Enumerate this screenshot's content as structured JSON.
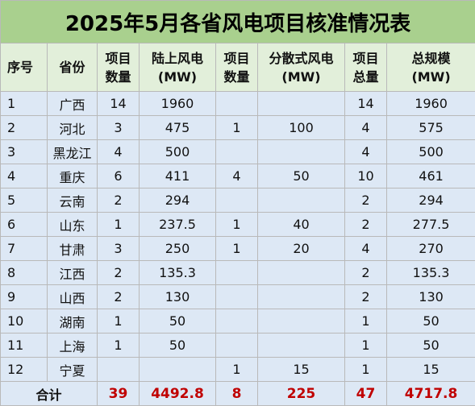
{
  "title": "2025年5月各省风电项目核准情况表",
  "headers": {
    "seq": "序号",
    "province": "省份",
    "onshore_count": [
      "项目",
      "数量"
    ],
    "onshore_capacity": [
      "陆上风电",
      "(MW)"
    ],
    "distributed_count": [
      "项目",
      "数量"
    ],
    "distributed_capacity": [
      "分散式风电",
      "(MW)"
    ],
    "total_count": [
      "项目",
      "总量"
    ],
    "total_capacity": [
      "总规模",
      "(MW)"
    ]
  },
  "rows": [
    {
      "seq": "1",
      "province": "广西",
      "on_n": "14",
      "on_mw": "1960",
      "dist_n": "",
      "dist_mw": "",
      "tot_n": "14",
      "tot_mw": "1960"
    },
    {
      "seq": "2",
      "province": "河北",
      "on_n": "3",
      "on_mw": "475",
      "dist_n": "1",
      "dist_mw": "100",
      "tot_n": "4",
      "tot_mw": "575"
    },
    {
      "seq": "3",
      "province": "黑龙江",
      "on_n": "4",
      "on_mw": "500",
      "dist_n": "",
      "dist_mw": "",
      "tot_n": "4",
      "tot_mw": "500"
    },
    {
      "seq": "4",
      "province": "重庆",
      "on_n": "6",
      "on_mw": "411",
      "dist_n": "4",
      "dist_mw": "50",
      "tot_n": "10",
      "tot_mw": "461"
    },
    {
      "seq": "5",
      "province": "云南",
      "on_n": "2",
      "on_mw": "294",
      "dist_n": "",
      "dist_mw": "",
      "tot_n": "2",
      "tot_mw": "294"
    },
    {
      "seq": "6",
      "province": "山东",
      "on_n": "1",
      "on_mw": "237.5",
      "dist_n": "1",
      "dist_mw": "40",
      "tot_n": "2",
      "tot_mw": "277.5"
    },
    {
      "seq": "7",
      "province": "甘肃",
      "on_n": "3",
      "on_mw": "250",
      "dist_n": "1",
      "dist_mw": "20",
      "tot_n": "4",
      "tot_mw": "270"
    },
    {
      "seq": "8",
      "province": "江西",
      "on_n": "2",
      "on_mw": "135.3",
      "dist_n": "",
      "dist_mw": "",
      "tot_n": "2",
      "tot_mw": "135.3"
    },
    {
      "seq": "9",
      "province": "山西",
      "on_n": "2",
      "on_mw": "130",
      "dist_n": "",
      "dist_mw": "",
      "tot_n": "2",
      "tot_mw": "130"
    },
    {
      "seq": "10",
      "province": "湖南",
      "on_n": "1",
      "on_mw": "50",
      "dist_n": "",
      "dist_mw": "",
      "tot_n": "1",
      "tot_mw": "50"
    },
    {
      "seq": "11",
      "province": "上海",
      "on_n": "1",
      "on_mw": "50",
      "dist_n": "",
      "dist_mw": "",
      "tot_n": "1",
      "tot_mw": "50"
    },
    {
      "seq": "12",
      "province": "宁夏",
      "on_n": "",
      "on_mw": "",
      "dist_n": "1",
      "dist_mw": "15",
      "tot_n": "1",
      "tot_mw": "15"
    }
  ],
  "total": {
    "label": "合计",
    "on_n": "39",
    "on_mw": "4492.8",
    "dist_n": "8",
    "dist_mw": "225",
    "tot_n": "47",
    "tot_mw": "4717.8"
  },
  "colors": {
    "title_bg": "#a9d08e",
    "header_bg": "#e2efda",
    "row_bg": "#dde8f5",
    "total_number": "#c00000"
  }
}
